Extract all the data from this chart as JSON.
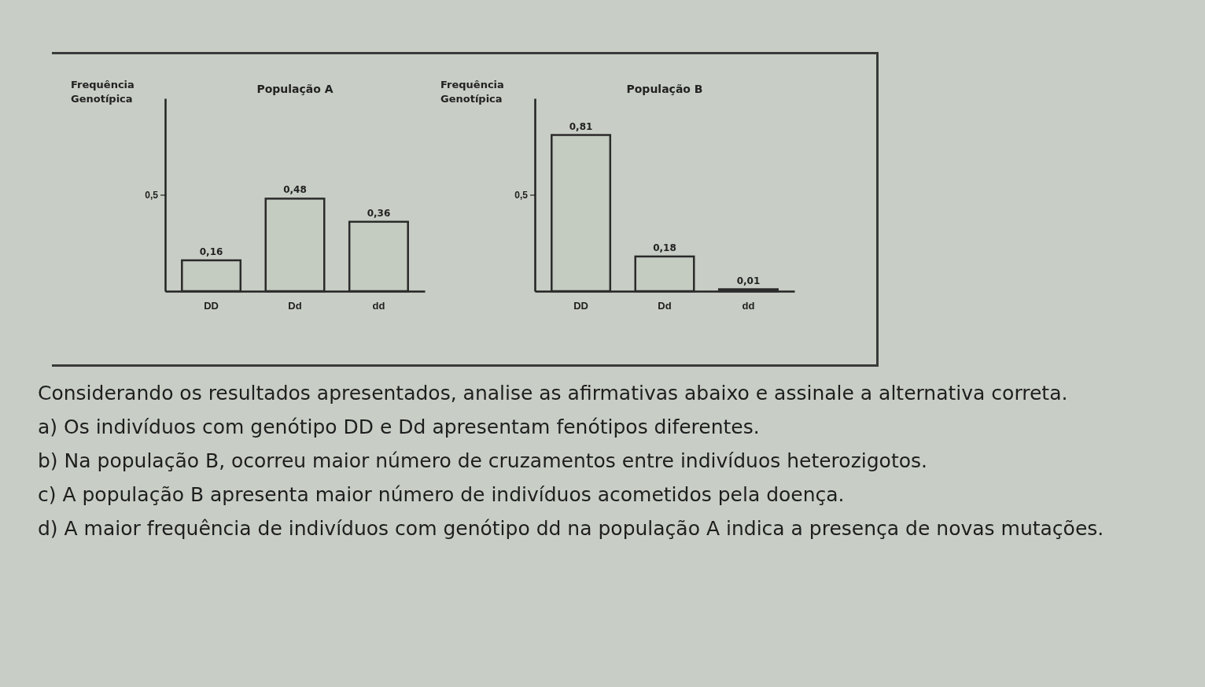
{
  "chart_data": [
    {
      "type": "bar",
      "title": "População A",
      "ylabel": "Frequência Genotípica",
      "categories": [
        "DD",
        "Dd",
        "dd"
      ],
      "values": [
        0.16,
        0.48,
        0.36
      ],
      "value_labels": [
        "0,16",
        "0,48",
        "0,36"
      ],
      "color": "#2b2b2b",
      "ylim": [
        0,
        1
      ],
      "yticks": [
        {
          "value": 0.5,
          "label": "0,5"
        }
      ],
      "grid": false
    },
    {
      "type": "bar",
      "title": "População B",
      "ylabel": "Frequência Genotípica",
      "categories": [
        "DD",
        "Dd",
        "dd"
      ],
      "values": [
        0.81,
        0.18,
        0.01
      ],
      "value_labels": [
        "0,81",
        "0,18",
        "0,01"
      ],
      "color": "#2b2b2b",
      "ylim": [
        0,
        1
      ],
      "yticks": [
        {
          "value": 0.5,
          "label": "0,5"
        }
      ],
      "grid": false
    },
    {
      "type": "other",
      "annotations": [
        "Considerando os resultados apresentados, analise as afirmativas abaixo e assinale a alternativa correta.",
        "a) Os indivíduos com genótipo DD e Dd apresentam fenótipos diferentes.",
        "b) Na população B, ocorreu maior número de cruzamentos entre indivíduos heterozigotos.",
        "c) A população B apresenta maior número de indivíduos acometidos pela doença.",
        "d) A maior frequência de indivíduos com genótipo dd na população A indica a presença de novas mutações."
      ]
    }
  ]
}
